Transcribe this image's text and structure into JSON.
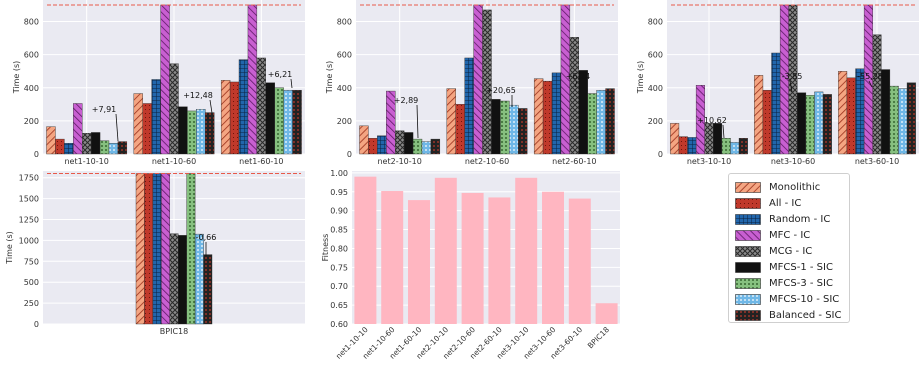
{
  "legend": {
    "items": [
      {
        "label": "Monolithic",
        "pattern": "p0"
      },
      {
        "label": "All - IC",
        "pattern": "p1"
      },
      {
        "label": "Random - IC",
        "pattern": "p2"
      },
      {
        "label": "MFC - IC",
        "pattern": "p3"
      },
      {
        "label": "MCG - IC",
        "pattern": "p4"
      },
      {
        "label": "MFCS-1 - SIC",
        "pattern": "p5"
      },
      {
        "label": "MFCS-3 - SIC",
        "pattern": "p6"
      },
      {
        "label": "MFCS-10 - SIC",
        "pattern": "p7"
      },
      {
        "label": "Balanced - SIC",
        "pattern": "p8"
      }
    ]
  },
  "colors": {
    "panel_bg": "#eaeaf2",
    "grid": "#ffffff",
    "timeout_line": "#e8594a",
    "fitness_bar": "#ffb6c1",
    "monolithic": "#f4a582",
    "all_ic": "#c0392b",
    "random_ic": "#2166ac",
    "mfc_ic": "#c85fd1",
    "mcg_ic": "#8a8a8a",
    "mfcs1_sic": "#111111",
    "mfcs3_sic": "#86c07f",
    "mfcs10_sic": "#6fb7e6",
    "balanced_sic": "#222222"
  },
  "chart_data": [
    {
      "id": "net1",
      "type": "bar",
      "ylabel": "Time (s)",
      "yticks": [
        "0",
        "200",
        "400",
        "600",
        "800"
      ],
      "ylim": [
        0,
        930
      ],
      "timeout": 900,
      "categories": [
        "net1-10-10",
        "net1-10-60",
        "net1-60-10"
      ],
      "series": [
        {
          "name": "Monolithic",
          "values": [
            165,
            365,
            445
          ]
        },
        {
          "name": "All - IC",
          "values": [
            90,
            305,
            435
          ]
        },
        {
          "name": "Random - IC",
          "values": [
            65,
            450,
            570
          ]
        },
        {
          "name": "MFC - IC",
          "values": [
            305,
            900,
            900
          ]
        },
        {
          "name": "MCG - IC",
          "values": [
            125,
            545,
            580
          ]
        },
        {
          "name": "MFCS-1 - SIC",
          "values": [
            130,
            285,
            430
          ]
        },
        {
          "name": "MFCS-3 - SIC",
          "values": [
            80,
            260,
            400
          ]
        },
        {
          "name": "MFCS-10 - SIC",
          "values": [
            65,
            270,
            385
          ]
        },
        {
          "name": "Balanced - SIC",
          "values": [
            75,
            250,
            385
          ]
        }
      ],
      "annotations": [
        {
          "category": 0,
          "text": "+7,91"
        },
        {
          "category": 1,
          "text": "+12,48"
        },
        {
          "category": 2,
          "text": "+6,21"
        }
      ]
    },
    {
      "id": "net2",
      "type": "bar",
      "ylabel": "Time (s)",
      "yticks": [
        "0",
        "200",
        "400",
        "600",
        "800"
      ],
      "ylim": [
        0,
        930
      ],
      "timeout": 900,
      "categories": [
        "net2-10-10",
        "net2-10-60",
        "net2-60-10"
      ],
      "series": [
        {
          "name": "Monolithic",
          "values": [
            170,
            395,
            455
          ]
        },
        {
          "name": "All - IC",
          "values": [
            95,
            300,
            440
          ]
        },
        {
          "name": "Random - IC",
          "values": [
            110,
            580,
            490
          ]
        },
        {
          "name": "MFC - IC",
          "values": [
            380,
            900,
            900
          ]
        },
        {
          "name": "MCG - IC",
          "values": [
            140,
            870,
            705
          ]
        },
        {
          "name": "MFCS-1 - SIC",
          "values": [
            130,
            330,
            505
          ]
        },
        {
          "name": "MFCS-3 - SIC",
          "values": [
            90,
            320,
            365
          ]
        },
        {
          "name": "MFCS-10 - SIC",
          "values": [
            75,
            295,
            385
          ]
        },
        {
          "name": "Balanced - SIC",
          "values": [
            90,
            275,
            395
          ]
        }
      ],
      "annotations": [
        {
          "category": 0,
          "text": "+2,89"
        },
        {
          "category": 1,
          "text": "+20,65"
        },
        {
          "category": 2,
          "text": "+6,24"
        }
      ]
    },
    {
      "id": "net3",
      "type": "bar",
      "ylabel": "Time (s)",
      "yticks": [
        "0",
        "200",
        "400",
        "600",
        "800"
      ],
      "ylim": [
        0,
        930
      ],
      "timeout": 900,
      "categories": [
        "net3-10-10",
        "net3-10-60",
        "net3-60-10"
      ],
      "series": [
        {
          "name": "Monolithic",
          "values": [
            185,
            475,
            500
          ]
        },
        {
          "name": "All - IC",
          "values": [
            105,
            385,
            460
          ]
        },
        {
          "name": "Random - IC",
          "values": [
            100,
            610,
            515
          ]
        },
        {
          "name": "MFC - IC",
          "values": [
            415,
            900,
            900
          ]
        },
        {
          "name": "MCG - IC",
          "values": [
            185,
            900,
            720
          ]
        },
        {
          "name": "MFCS-1 - SIC",
          "values": [
            185,
            370,
            510
          ]
        },
        {
          "name": "MFCS-3 - SIC",
          "values": [
            95,
            355,
            410
          ]
        },
        {
          "name": "MFCS-10 - SIC",
          "values": [
            70,
            375,
            395
          ]
        },
        {
          "name": "Balanced - SIC",
          "values": [
            95,
            360,
            430
          ]
        }
      ],
      "annotations": [
        {
          "category": 0,
          "text": "+10,62"
        },
        {
          "category": 1,
          "text": "-3,85"
        },
        {
          "category": 2,
          "text": "-55,28"
        }
      ]
    },
    {
      "id": "bpic",
      "type": "bar",
      "ylabel": "Time (s)",
      "yticks": [
        "0",
        "250",
        "500",
        "750",
        "1000",
        "1250",
        "1500",
        "1750"
      ],
      "ylim": [
        0,
        1830
      ],
      "timeout": 1800,
      "categories": [
        "BPIC18"
      ],
      "series": [
        {
          "name": "Monolithic",
          "values": [
            1800
          ]
        },
        {
          "name": "All - IC",
          "values": [
            1800
          ]
        },
        {
          "name": "Random - IC",
          "values": [
            1800
          ]
        },
        {
          "name": "MFC - IC",
          "values": [
            1800
          ]
        },
        {
          "name": "MCG - IC",
          "values": [
            1080
          ]
        },
        {
          "name": "MFCS-1 - SIC",
          "values": [
            1060
          ]
        },
        {
          "name": "MFCS-3 - SIC",
          "values": [
            1800
          ]
        },
        {
          "name": "MFCS-10 - SIC",
          "values": [
            1075
          ]
        },
        {
          "name": "Balanced - SIC",
          "values": [
            830
          ]
        }
      ],
      "annotations": [
        {
          "category": 0,
          "text": "-0,66"
        }
      ]
    },
    {
      "id": "fitness",
      "type": "bar",
      "ylabel": "Fitness",
      "yticks": [
        "0.60",
        "0.65",
        "0.70",
        "0.75",
        "0.80",
        "0.85",
        "0.90",
        "0.95",
        "1.00"
      ],
      "ylim": [
        0.6,
        1.005
      ],
      "categories": [
        "net1-10-10",
        "net1-10-60",
        "net1-60-10",
        "net2-10-10",
        "net2-10-60",
        "net2-60-10",
        "net3-10-10",
        "net3-10-60",
        "net3-60-10",
        "BPIC18"
      ],
      "values": [
        0.99,
        0.952,
        0.928,
        0.987,
        0.947,
        0.935,
        0.987,
        0.95,
        0.932,
        0.655
      ]
    }
  ]
}
